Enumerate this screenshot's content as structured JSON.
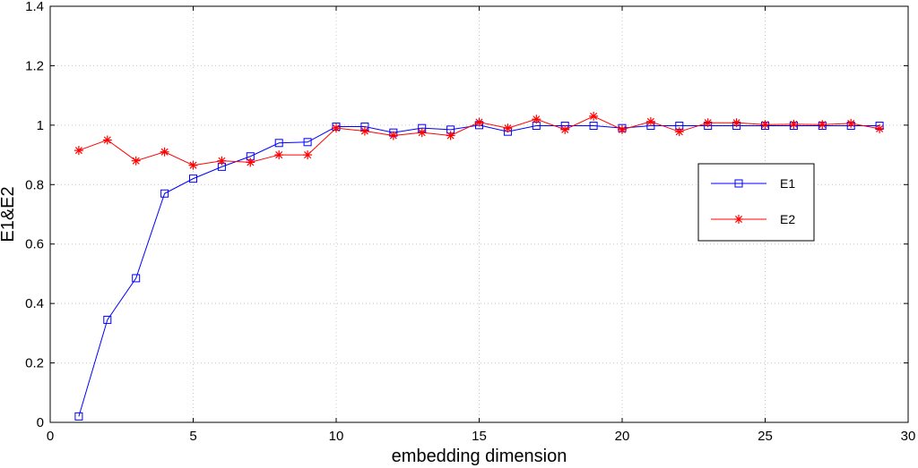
{
  "chart_data": {
    "type": "line",
    "title": "",
    "xlabel": "embedding dimension",
    "ylabel": "E1&E2",
    "xlim": [
      0,
      30
    ],
    "ylim": [
      0,
      1.4
    ],
    "xticks": [
      0,
      5,
      10,
      15,
      20,
      25,
      30
    ],
    "yticks": [
      0,
      0.2,
      0.4,
      0.6,
      0.8,
      1,
      1.2,
      1.4
    ],
    "grid": true,
    "legend_position": "right",
    "x": [
      1,
      2,
      3,
      4,
      5,
      6,
      7,
      8,
      9,
      10,
      11,
      12,
      13,
      14,
      15,
      16,
      17,
      18,
      19,
      20,
      21,
      22,
      23,
      24,
      25,
      26,
      27,
      28,
      29
    ],
    "series": [
      {
        "name": "E1",
        "color": "#0000ff",
        "marker": "square",
        "values": [
          0.02,
          0.345,
          0.485,
          0.77,
          0.82,
          0.86,
          0.895,
          0.94,
          0.943,
          0.995,
          0.995,
          0.975,
          0.99,
          0.985,
          1.0,
          0.978,
          0.998,
          0.998,
          0.998,
          0.99,
          0.998,
          0.998,
          0.998,
          0.998,
          0.998,
          0.998,
          0.998,
          0.998,
          0.998
        ]
      },
      {
        "name": "E2",
        "color": "#ff0000",
        "marker": "asterisk",
        "values": [
          0.915,
          0.95,
          0.88,
          0.91,
          0.865,
          0.88,
          0.875,
          0.9,
          0.9,
          0.99,
          0.98,
          0.965,
          0.975,
          0.965,
          1.01,
          0.99,
          1.02,
          0.985,
          1.03,
          0.985,
          1.012,
          0.978,
          1.008,
          1.008,
          1.002,
          1.003,
          1.002,
          1.006,
          0.988
        ]
      }
    ]
  }
}
